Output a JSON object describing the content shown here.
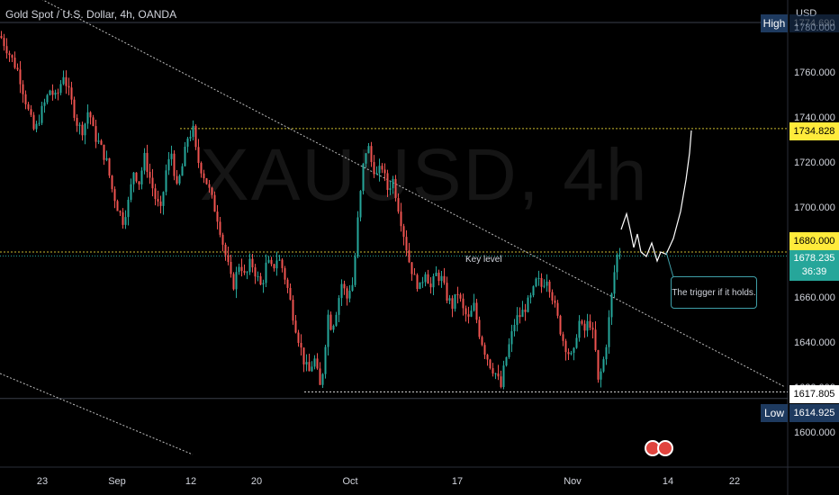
{
  "header": {
    "symbol_title": "Gold Spot / U.S. Dollar, 4h, OANDA",
    "currency": "USD"
  },
  "watermark": "XAUUSD, 4h",
  "annotations": {
    "key_level": "Key level",
    "trigger_note": "The trigger if it holds."
  },
  "price_tags": {
    "high_label": "High",
    "high_price": "1774.690",
    "target": "1734.828",
    "level_1680": "1680.000",
    "current_price": "1678.235",
    "countdown": "36:39",
    "support": "1617.805",
    "low_label": "Low",
    "low_price": "1614.925"
  },
  "colors": {
    "up": "#26a69a",
    "down": "#ef5350",
    "target_tag": "#ffeb3b",
    "level_tag": "#ffeb3b",
    "current_tag": "#26a69a",
    "low_tag": "#1e3a5f",
    "support_tag": "#ffffff",
    "accent_box": "#3f9fa8"
  },
  "chart_data": {
    "type": "candlestick",
    "title": "Gold Spot / U.S. Dollar, 4h, OANDA",
    "ylim": [
      1592,
      1800
    ],
    "yticks": [
      1600,
      1620,
      1640,
      1660,
      1680,
      1700,
      1720,
      1740,
      1760,
      1780
    ],
    "ytick_labels": [
      "1600.000",
      "1620.000",
      "1640.000",
      "1660.000",
      "1680.000",
      "1700.000",
      "1720.000",
      "1740.000",
      "1760.000",
      "1780.000"
    ],
    "xticks": [
      "23",
      "Sep",
      "12",
      "20",
      "Oct",
      "17",
      "Nov",
      "14",
      "22"
    ],
    "levels": [
      1734.828,
      1680.0,
      1617.805
    ],
    "current_price": 1678.235,
    "session_high": 1774.69,
    "session_low": 1614.925,
    "close_path": [
      [
        0,
        1776
      ],
      [
        10,
        1768
      ],
      [
        20,
        1760
      ],
      [
        30,
        1744
      ],
      [
        38,
        1733
      ],
      [
        45,
        1742
      ],
      [
        55,
        1752
      ],
      [
        62,
        1748
      ],
      [
        70,
        1759
      ],
      [
        78,
        1748
      ],
      [
        86,
        1736
      ],
      [
        92,
        1734
      ],
      [
        98,
        1744
      ],
      [
        104,
        1732
      ],
      [
        110,
        1728
      ],
      [
        118,
        1720
      ],
      [
        124,
        1708
      ],
      [
        130,
        1700
      ],
      [
        136,
        1694
      ],
      [
        142,
        1702
      ],
      [
        148,
        1716
      ],
      [
        154,
        1711
      ],
      [
        160,
        1722
      ],
      [
        166,
        1713
      ],
      [
        172,
        1704
      ],
      [
        178,
        1698
      ],
      [
        184,
        1716
      ],
      [
        190,
        1724
      ],
      [
        196,
        1708
      ],
      [
        202,
        1718
      ],
      [
        208,
        1731
      ],
      [
        214,
        1734
      ],
      [
        218,
        1722
      ],
      [
        224,
        1716
      ],
      [
        230,
        1710
      ],
      [
        236,
        1702
      ],
      [
        242,
        1694
      ],
      [
        248,
        1682
      ],
      [
        254,
        1672
      ],
      [
        258,
        1664
      ],
      [
        262,
        1670
      ],
      [
        266,
        1676
      ],
      [
        272,
        1668
      ],
      [
        278,
        1676
      ],
      [
        284,
        1670
      ],
      [
        290,
        1664
      ],
      [
        296,
        1676
      ],
      [
        302,
        1672
      ],
      [
        308,
        1678
      ],
      [
        314,
        1672
      ],
      [
        320,
        1662
      ],
      [
        326,
        1650
      ],
      [
        332,
        1640
      ],
      [
        338,
        1630
      ],
      [
        344,
        1626
      ],
      [
        348,
        1634
      ],
      [
        352,
        1626
      ],
      [
        356,
        1618
      ],
      [
        360,
        1636
      ],
      [
        364,
        1652
      ],
      [
        368,
        1646
      ],
      [
        372,
        1652
      ],
      [
        376,
        1660
      ],
      [
        380,
        1668
      ],
      [
        384,
        1658
      ],
      [
        388,
        1664
      ],
      [
        392,
        1666
      ],
      [
        396,
        1690
      ],
      [
        400,
        1706
      ],
      [
        404,
        1722
      ],
      [
        408,
        1728
      ],
      [
        412,
        1720
      ],
      [
        418,
        1714
      ],
      [
        424,
        1718
      ],
      [
        430,
        1708
      ],
      [
        436,
        1712
      ],
      [
        442,
        1700
      ],
      [
        448,
        1688
      ],
      [
        454,
        1676
      ],
      [
        460,
        1668
      ],
      [
        466,
        1664
      ],
      [
        472,
        1672
      ],
      [
        478,
        1664
      ],
      [
        484,
        1670
      ],
      [
        490,
        1668
      ],
      [
        496,
        1660
      ],
      [
        502,
        1656
      ],
      [
        508,
        1662
      ],
      [
        514,
        1654
      ],
      [
        520,
        1650
      ],
      [
        526,
        1656
      ],
      [
        532,
        1644
      ],
      [
        538,
        1636
      ],
      [
        544,
        1630
      ],
      [
        550,
        1626
      ],
      [
        556,
        1620
      ],
      [
        560,
        1630
      ],
      [
        566,
        1640
      ],
      [
        572,
        1650
      ],
      [
        578,
        1652
      ],
      [
        584,
        1656
      ],
      [
        590,
        1660
      ],
      [
        596,
        1668
      ],
      [
        602,
        1664
      ],
      [
        606,
        1670
      ],
      [
        612,
        1662
      ],
      [
        618,
        1652
      ],
      [
        624,
        1642
      ],
      [
        630,
        1636
      ],
      [
        636,
        1632
      ],
      [
        642,
        1650
      ],
      [
        648,
        1644
      ],
      [
        654,
        1650
      ],
      [
        660,
        1640
      ],
      [
        664,
        1622
      ],
      [
        668,
        1628
      ],
      [
        672,
        1636
      ],
      [
        676,
        1650
      ],
      [
        680,
        1664
      ],
      [
        684,
        1678
      ],
      [
        688,
        1680
      ]
    ],
    "projection": [
      [
        690,
        1690
      ],
      [
        696,
        1697
      ],
      [
        700,
        1690
      ],
      [
        704,
        1682
      ],
      [
        708,
        1688
      ],
      [
        712,
        1680
      ],
      [
        718,
        1678
      ],
      [
        724,
        1684
      ],
      [
        730,
        1676
      ],
      [
        734,
        1680
      ],
      [
        740,
        1679
      ],
      [
        748,
        1686
      ],
      [
        756,
        1698
      ],
      [
        762,
        1712
      ],
      [
        766,
        1724
      ],
      [
        768,
        1734
      ]
    ],
    "trendlines": [
      {
        "from": [
          0,
          1802
        ],
        "to": [
          872,
          1620
        ]
      },
      {
        "from": [
          0,
          1626
        ],
        "to": [
          214,
          1590
        ]
      }
    ]
  }
}
